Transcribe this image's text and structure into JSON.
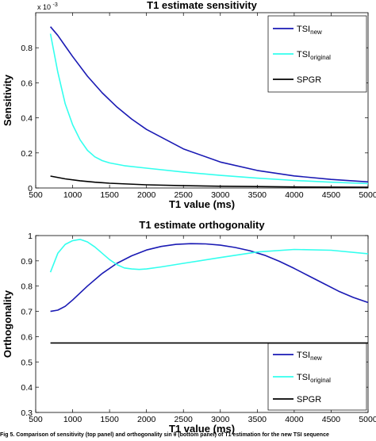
{
  "caption": "Fig 5. Comparison of sensitivity (top panel) and orthogonality sin θ (bottom panel) of T1 estimation for the new TSI sequence",
  "colors": {
    "tsi_new": "#1a1ab4",
    "tsi_original": "#33ffee",
    "spgr": "#000000"
  },
  "chart_data": [
    {
      "type": "line",
      "title": "T1 estimate sensitivity",
      "xlabel": "T1 value (ms)",
      "ylabel": "Sensitivity",
      "exponent_label": "x 10",
      "exponent_power": "-3",
      "xlim": [
        500,
        5000
      ],
      "ylim": [
        0,
        0.001
      ],
      "xticks": [
        500,
        1000,
        1500,
        2000,
        2500,
        3000,
        3500,
        4000,
        4500,
        5000
      ],
      "xtick_labels": [
        "500",
        "1000",
        "1500",
        "2000",
        "2500",
        "3000",
        "3500",
        "4000",
        "4500",
        "5000"
      ],
      "yticks": [
        0,
        0.0002,
        0.0004,
        0.0006,
        0.0008
      ],
      "ytick_labels": [
        "0",
        "0.2",
        "0.4",
        "0.6",
        "0.8"
      ],
      "legend_position": "top-right",
      "series": [
        {
          "name": "TSI",
          "name_sub": "new",
          "color": "tsi_new",
          "x": [
            700,
            800,
            900,
            1000,
            1200,
            1400,
            1600,
            1800,
            2000,
            2500,
            3000,
            3500,
            4000,
            4500,
            5000
          ],
          "y": [
            0.00092,
            0.00087,
            0.00081,
            0.00075,
            0.000638,
            0.000543,
            0.000462,
            0.000393,
            0.000334,
            0.000223,
            0.000148,
            0.0001,
            6.9e-05,
            4.9e-05,
            3.5e-05
          ]
        },
        {
          "name": "TSI",
          "name_sub": "original",
          "color": "tsi_original",
          "x": [
            700,
            800,
            900,
            1000,
            1100,
            1200,
            1300,
            1400,
            1500,
            1700,
            2000,
            2500,
            3000,
            3500,
            4000,
            4500,
            5000
          ],
          "y": [
            0.00088,
            0.00066,
            0.00048,
            0.00036,
            0.000275,
            0.000215,
            0.000178,
            0.000156,
            0.000143,
            0.000127,
            0.000113,
            9.1e-05,
            7.2e-05,
            5.6e-05,
            4.3e-05,
            3.3e-05,
            2.5e-05
          ]
        },
        {
          "name": "SPGR",
          "color": "spgr",
          "x": [
            700,
            900,
            1100,
            1300,
            1500,
            2000,
            2500,
            3000,
            3500,
            4000,
            4500,
            5000
          ],
          "y": [
            6.8e-05,
            5.2e-05,
            4.1e-05,
            3.3e-05,
            2.7e-05,
            1.8e-05,
            1.3e-05,
            1e-05,
            8e-06,
            6e-06,
            5e-06,
            4e-06
          ]
        }
      ]
    },
    {
      "type": "line",
      "title": "T1 estimate orthogonality",
      "xlabel": "T1 value (ms)",
      "ylabel": "Orthogonality",
      "xlim": [
        500,
        5000
      ],
      "ylim": [
        0.3,
        1
      ],
      "xticks": [
        500,
        1000,
        1500,
        2000,
        2500,
        3000,
        3500,
        4000,
        4500,
        5000
      ],
      "xtick_labels": [
        "500",
        "1000",
        "1500",
        "2000",
        "2500",
        "3000",
        "3500",
        "4000",
        "4500",
        "5000"
      ],
      "yticks": [
        0.3,
        0.4,
        0.5,
        0.6,
        0.7,
        0.8,
        0.9,
        1
      ],
      "ytick_labels": [
        "0.3",
        "0.4",
        "0.5",
        "0.6",
        "0.7",
        "0.8",
        "0.9",
        "1"
      ],
      "legend_position": "bottom-right",
      "series": [
        {
          "name": "TSI",
          "name_sub": "new",
          "color": "tsi_new",
          "x": [
            700,
            800,
            900,
            1000,
            1200,
            1400,
            1600,
            1800,
            2000,
            2200,
            2400,
            2600,
            2800,
            3000,
            3200,
            3400,
            3600,
            3800,
            4000,
            4200,
            4400,
            4600,
            4800,
            5000
          ],
          "y": [
            0.7,
            0.705,
            0.72,
            0.745,
            0.8,
            0.85,
            0.89,
            0.92,
            0.943,
            0.957,
            0.965,
            0.968,
            0.967,
            0.962,
            0.953,
            0.94,
            0.922,
            0.898,
            0.87,
            0.84,
            0.81,
            0.78,
            0.755,
            0.735
          ]
        },
        {
          "name": "TSI",
          "name_sub": "original",
          "color": "tsi_original",
          "x": [
            700,
            800,
            900,
            1000,
            1100,
            1200,
            1300,
            1400,
            1500,
            1600,
            1700,
            1800,
            1900,
            2000,
            2200,
            2500,
            3000,
            3500,
            4000,
            4500,
            5000
          ],
          "y": [
            0.855,
            0.93,
            0.965,
            0.98,
            0.985,
            0.975,
            0.955,
            0.93,
            0.905,
            0.885,
            0.872,
            0.868,
            0.866,
            0.868,
            0.876,
            0.89,
            0.913,
            0.935,
            0.945,
            0.942,
            0.928
          ]
        },
        {
          "name": "SPGR",
          "color": "spgr",
          "x": [
            700,
            5000
          ],
          "y": [
            0.575,
            0.575
          ]
        }
      ]
    }
  ]
}
